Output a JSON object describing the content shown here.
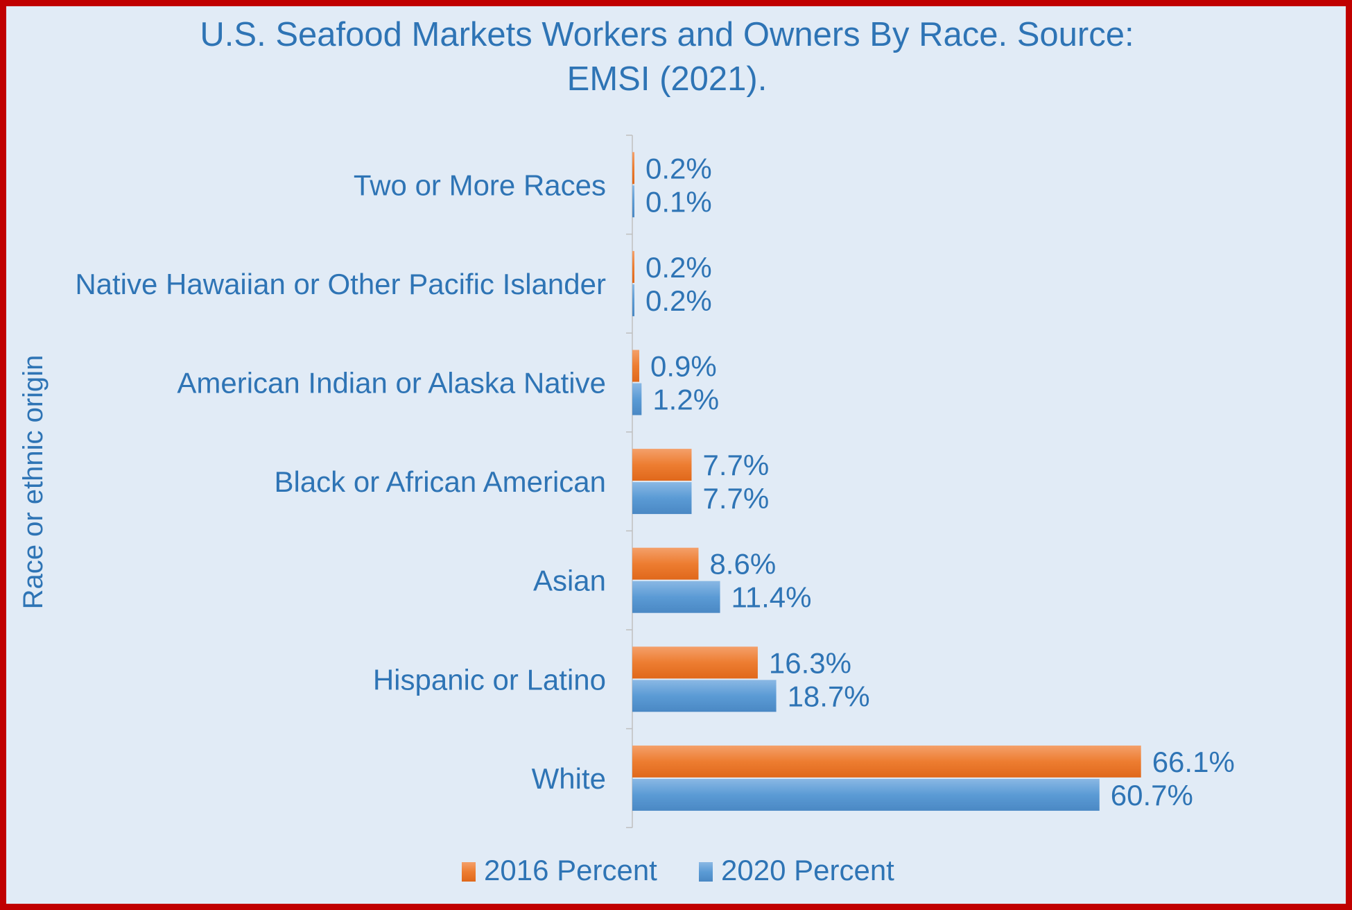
{
  "chart_data": {
    "type": "bar",
    "orientation": "horizontal",
    "title_lines": [
      "U.S. Seafood Markets Workers and Owners  By Race. Source:",
      "EMSI (2021)."
    ],
    "ylabel": "Race or ethnic origin",
    "xlabel": "",
    "categories": [
      "Two or More Races",
      "Native Hawaiian or Other Pacific Islander",
      "American Indian or Alaska Native",
      "Black or African American",
      "Asian",
      "Hispanic or Latino",
      "White"
    ],
    "series": [
      {
        "name": "2016 Percent",
        "color": "#ed7d31",
        "values": [
          0.2,
          0.2,
          0.9,
          7.7,
          8.6,
          16.3,
          66.1
        ],
        "labels": [
          "0.2%",
          "0.2%",
          "0.9%",
          "7.7%",
          "8.6%",
          "16.3%",
          "66.1%"
        ]
      },
      {
        "name": "2020 Percent",
        "color": "#5b9bd5",
        "values": [
          0.1,
          0.2,
          1.2,
          7.7,
          11.4,
          18.7,
          60.7
        ],
        "labels": [
          "0.1%",
          "0.2%",
          "1.2%",
          "7.7%",
          "11.4%",
          "18.7%",
          "60.7%"
        ]
      }
    ],
    "xlim": [
      0,
      70
    ],
    "grid": false,
    "legend_position": "bottom",
    "colors": {
      "text": "#2e74b5",
      "border": "#c00000",
      "background": "#e1ebf6"
    }
  }
}
